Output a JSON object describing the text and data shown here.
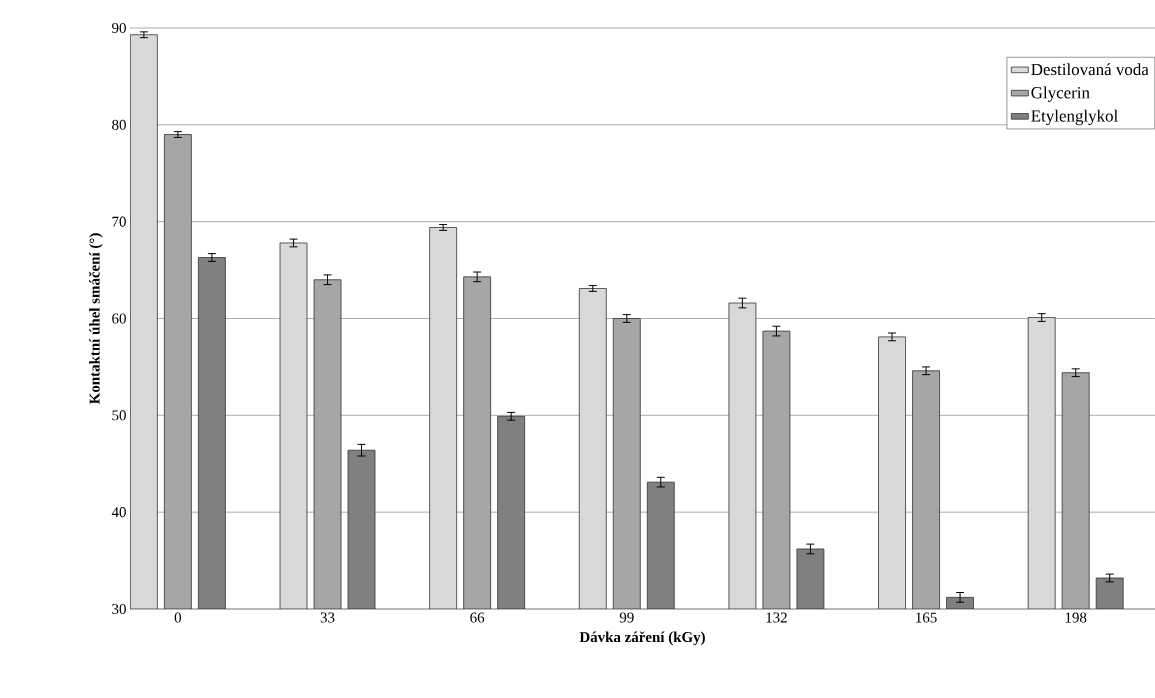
{
  "chart_data": {
    "type": "bar",
    "xlabel": "Dávka záření (kGy)",
    "ylabel": "Kontaktní úhel smáčení (°)",
    "categories": [
      "0",
      "33",
      "66",
      "99",
      "132",
      "165",
      "198"
    ],
    "series": [
      {
        "name": "Destilovaná voda",
        "color": "#d9d9d9",
        "values": [
          89.3,
          67.8,
          69.4,
          63.1,
          61.6,
          58.1,
          60.1
        ],
        "errors": [
          0.3,
          0.4,
          0.3,
          0.3,
          0.5,
          0.4,
          0.4
        ]
      },
      {
        "name": "Glycerin",
        "color": "#a6a6a6",
        "values": [
          79.0,
          64.0,
          64.3,
          60.0,
          58.7,
          54.6,
          54.4
        ],
        "errors": [
          0.3,
          0.5,
          0.5,
          0.4,
          0.5,
          0.4,
          0.4
        ]
      },
      {
        "name": "Etylenglykol",
        "color": "#808080",
        "values": [
          66.3,
          46.4,
          49.9,
          43.1,
          36.2,
          31.2,
          33.2
        ],
        "errors": [
          0.4,
          0.6,
          0.4,
          0.5,
          0.5,
          0.5,
          0.4
        ]
      }
    ],
    "ylim": [
      30,
      90
    ],
    "yticks": [
      30,
      40,
      50,
      60,
      70,
      80,
      90
    ],
    "grid": "y",
    "legend": "top right"
  }
}
